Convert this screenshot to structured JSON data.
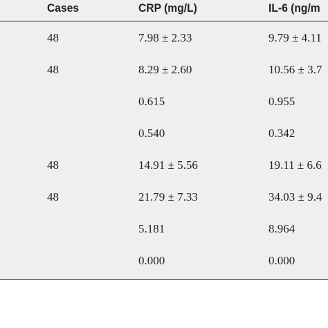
{
  "table": {
    "header": [
      "Cases",
      "CRP (mg/L)",
      "IL-6 (ng/m"
    ],
    "rows": [
      [
        "48",
        "7.98 ± 2.33",
        "9.79 ± 4.11"
      ],
      [
        "48",
        "8.29 ± 2.60",
        "10.56 ± 3.7"
      ],
      [
        null,
        "0.615",
        "0.955"
      ],
      [
        null,
        "0.540",
        "0.342"
      ],
      [
        "48",
        "14.91 ± 5.56",
        "19.11 ± 6.6"
      ],
      [
        "48",
        "21.79 ± 7.33",
        "34.03 ± 9.4"
      ],
      [
        null,
        "5.181",
        "8.964"
      ],
      [
        null,
        "0.000",
        "0.000"
      ]
    ]
  }
}
